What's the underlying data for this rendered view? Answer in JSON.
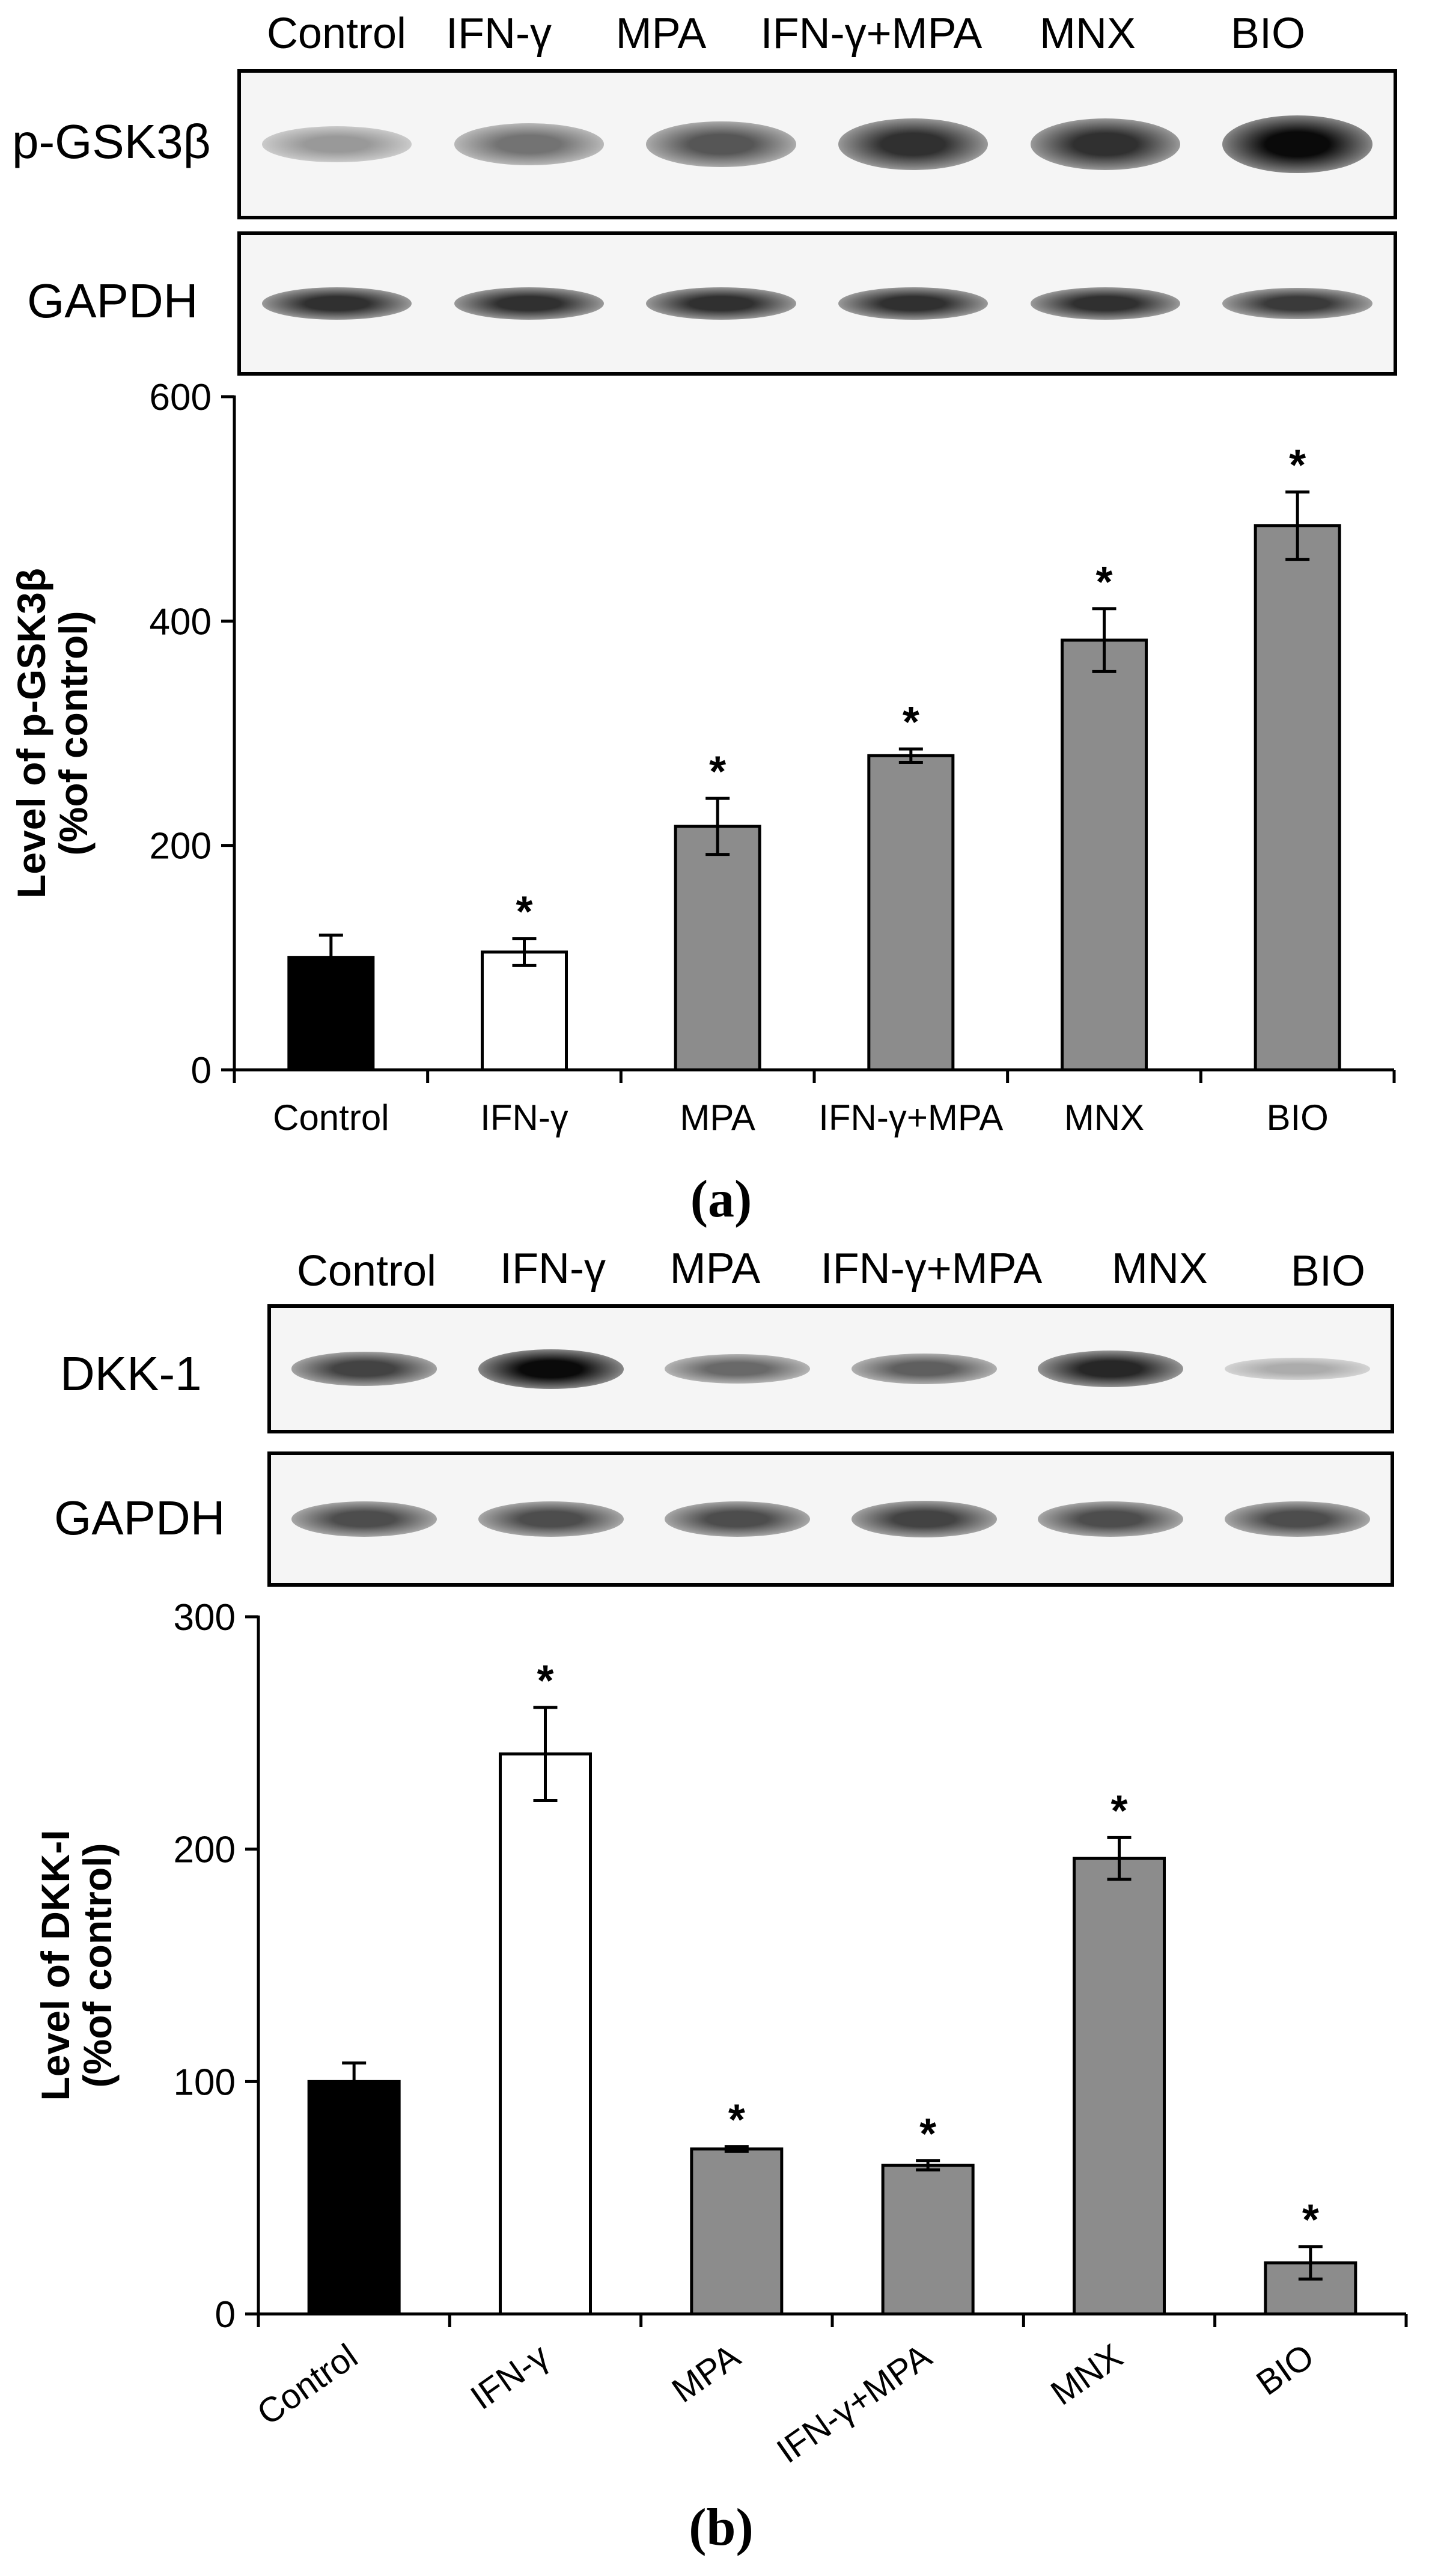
{
  "figure_a": {
    "lanes": [
      "Control",
      "IFN-γ",
      "MPA",
      "IFN-γ+MPA",
      "MNX",
      "BIO"
    ],
    "blot_rows": [
      {
        "label": "p-GSK3β",
        "intensity": [
          0.25,
          0.45,
          0.6,
          0.8,
          0.8,
          1.0
        ]
      },
      {
        "label": "GAPDH",
        "intensity": [
          0.8,
          0.8,
          0.8,
          0.8,
          0.8,
          0.75
        ]
      }
    ],
    "panel_letter": "(a)"
  },
  "figure_b": {
    "lanes": [
      "Control",
      "IFN-γ",
      "MPA",
      "IFN-γ+MPA",
      "MNX",
      "BIO"
    ],
    "blot_rows": [
      {
        "label": "DKK-1",
        "intensity": [
          0.7,
          1.0,
          0.5,
          0.55,
          0.85,
          0.15
        ]
      },
      {
        "label": "GAPDH",
        "intensity": [
          0.65,
          0.65,
          0.65,
          0.7,
          0.65,
          0.65
        ]
      }
    ],
    "panel_letter": "(b)"
  },
  "chart_data": [
    {
      "type": "bar",
      "title": "",
      "categories": [
        "Control",
        "IFN-γ",
        "MPA",
        "IFN-γ+MPA",
        "MNX",
        "BIO"
      ],
      "values": [
        100,
        105,
        217,
        280,
        383,
        485
      ],
      "errors": [
        20,
        12,
        25,
        6,
        28,
        30
      ],
      "significant": [
        false,
        true,
        true,
        true,
        true,
        true
      ],
      "bar_colors": [
        "#000000",
        "#ffffff",
        "#8c8c8c",
        "#8c8c8c",
        "#8c8c8c",
        "#8c8c8c"
      ],
      "ylabel_line1": "Level of  p-GSK3β",
      "ylabel_line2": "(%of control)",
      "xlabel": "",
      "ylim": [
        0,
        600
      ],
      "yticks": [
        0,
        200,
        400,
        600
      ],
      "marker": "*",
      "rotated_labels": false
    },
    {
      "type": "bar",
      "title": "",
      "categories": [
        "Control",
        "IFN-γ",
        "MPA",
        "IFN-γ+MPA",
        "MNX",
        "BIO"
      ],
      "values": [
        100,
        241,
        71,
        64,
        196,
        22
      ],
      "errors": [
        8,
        20,
        1,
        2,
        9,
        7
      ],
      "significant": [
        false,
        true,
        true,
        true,
        true,
        true
      ],
      "bar_colors": [
        "#000000",
        "#ffffff",
        "#8c8c8c",
        "#8c8c8c",
        "#8c8c8c",
        "#8c8c8c"
      ],
      "ylabel_line1": "Level of  DKK-I",
      "ylabel_line2": "(%of control)",
      "xlabel": "",
      "ylim": [
        0,
        300
      ],
      "yticks": [
        0,
        100,
        200,
        300
      ],
      "marker": "*",
      "rotated_labels": true
    }
  ]
}
